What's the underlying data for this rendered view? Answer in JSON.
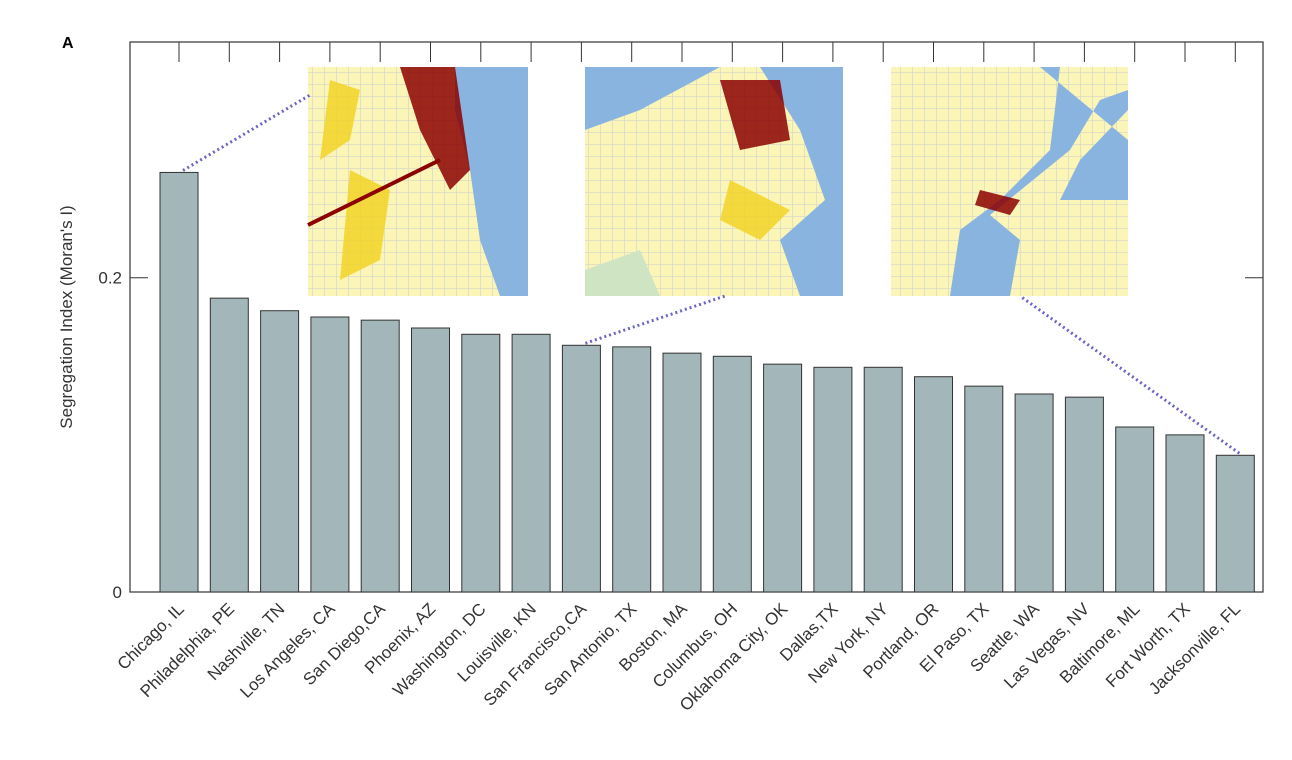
{
  "chart_data": {
    "type": "bar",
    "panel_label": "A",
    "ylabel": "Segregation Index (Moran's I)",
    "categories": [
      "Chicago, IL",
      "Philadelphia, PE",
      "Nashville, TN",
      "Los Angeles, CA",
      "San Diego,CA",
      "Phoenix, AZ",
      "Washington, DC",
      "Louisville, KN",
      "San Francisco,CA",
      "San Antonio, TX",
      "Boston, MA",
      "Columbus, OH",
      "Oklahoma City, OK",
      "Dallas,TX",
      "New York, NY",
      "Portland, OR",
      "El Paso, TX",
      "Seattle, WA",
      "Las Vegas, NV",
      "Baltimore, ML",
      "Fort Worth, TX",
      "Jacksonville, FL"
    ],
    "values": [
      0.267,
      0.187,
      0.179,
      0.175,
      0.173,
      0.168,
      0.164,
      0.164,
      0.157,
      0.156,
      0.152,
      0.15,
      0.145,
      0.143,
      0.143,
      0.137,
      0.131,
      0.126,
      0.124,
      0.105,
      0.1,
      0.087
    ],
    "color": "#a3b7ba",
    "ylim": [
      0,
      0.35
    ],
    "yticks": [
      0,
      0.2
    ],
    "grid": false
  }
}
